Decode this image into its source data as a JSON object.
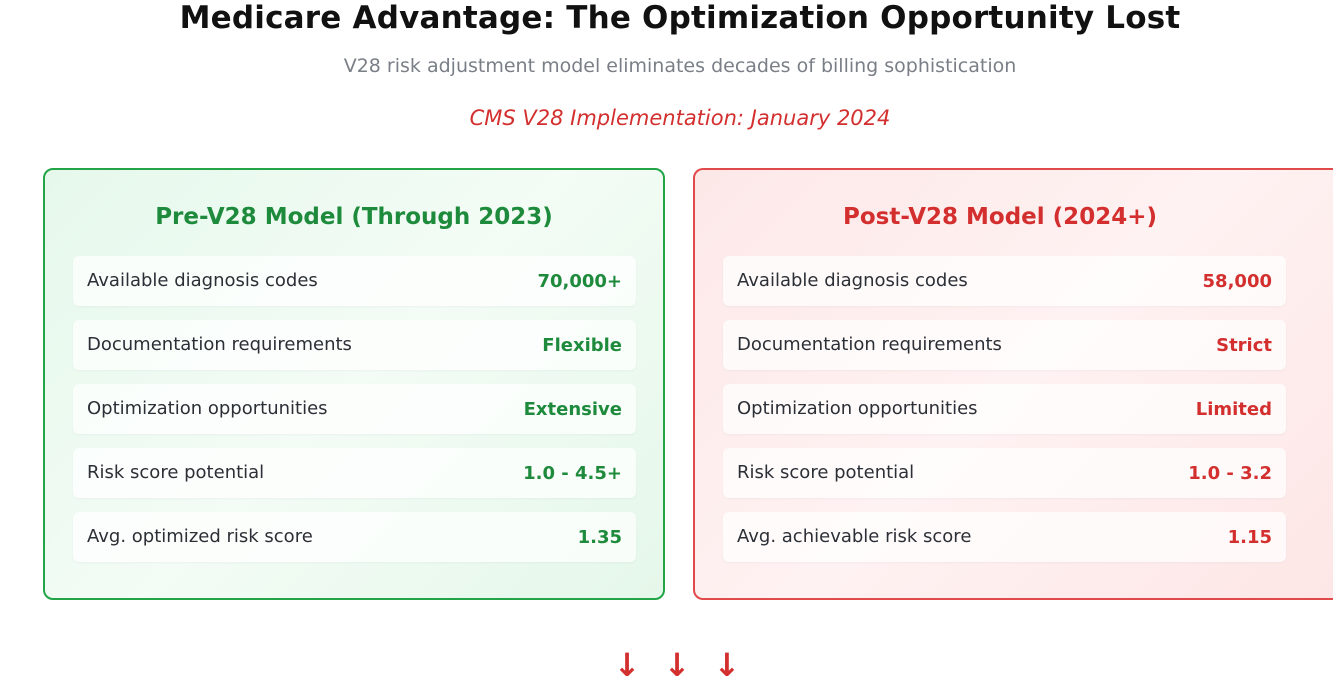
{
  "header": {
    "title": "Medicare Advantage: The Optimization Opportunity Lost",
    "subtitle": "V28 risk adjustment model eliminates decades of billing sophistication",
    "implementation": "CMS V28 Implementation: January 2024"
  },
  "pre_model": {
    "title": "Pre-V28 Model (Through 2023)",
    "rows": [
      {
        "label": "Available diagnosis codes",
        "value": "70,000+"
      },
      {
        "label": "Documentation requirements",
        "value": "Flexible"
      },
      {
        "label": "Optimization opportunities",
        "value": "Extensive"
      },
      {
        "label": "Risk score potential",
        "value": "1.0 - 4.5+"
      },
      {
        "label": "Avg. optimized risk score",
        "value": "1.35"
      }
    ]
  },
  "post_model": {
    "title": "Post-V28 Model (2024+)",
    "rows": [
      {
        "label": "Available diagnosis codes",
        "value": "58,000"
      },
      {
        "label": "Documentation requirements",
        "value": "Strict"
      },
      {
        "label": "Optimization opportunities",
        "value": "Limited"
      },
      {
        "label": "Risk score potential",
        "value": "1.0 - 3.2"
      },
      {
        "label": "Avg. achievable risk score",
        "value": "1.15"
      }
    ]
  },
  "arrows": {
    "icon": "down-arrow-icon",
    "glyph": "↓",
    "count": 3
  },
  "colors": {
    "pre_accent": "#1e8a3c",
    "post_accent": "#d32f2f"
  }
}
